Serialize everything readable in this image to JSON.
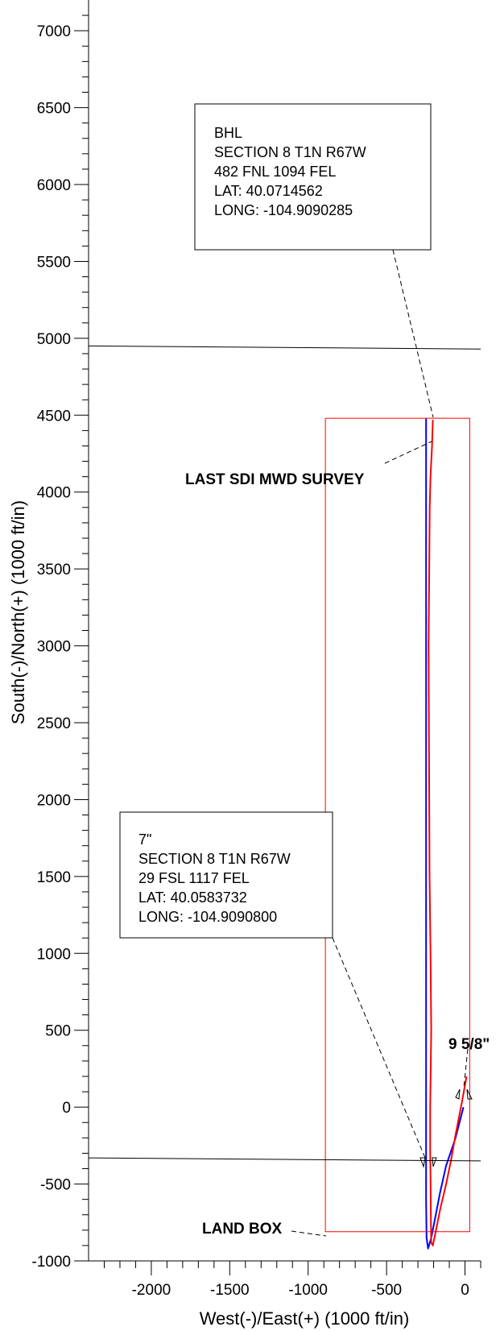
{
  "chart_data": {
    "type": "line",
    "title": "",
    "xlabel": "West(-)/East(+) (1000 ft/in)",
    "ylabel": "South(-)/North(+) (1000 ft/in)",
    "xlim": [
      -2400,
      100
    ],
    "ylim": [
      -1000,
      7200
    ],
    "x_ticks": [
      -2000,
      -1500,
      -1000,
      -500,
      0
    ],
    "x_tick_labels": [
      "-2000",
      "-1500",
      "-1000",
      "-500",
      "0"
    ],
    "y_ticks": [
      -1000,
      -500,
      0,
      500,
      1000,
      1500,
      2000,
      2500,
      3000,
      3500,
      4000,
      4500,
      5000,
      5500,
      6000,
      6500,
      7000
    ],
    "y_tick_labels": [
      "-1000",
      "-500",
      "0",
      "500",
      "1000",
      "1500",
      "2000",
      "2500",
      "3000",
      "3500",
      "4000",
      "4500",
      "5000",
      "5500",
      "6000",
      "6500",
      "7000"
    ],
    "grid": false,
    "series": [
      {
        "color": "#0000ff",
        "x": [
          -10,
          -60,
          -120,
          -160,
          -190,
          -215,
          -235,
          -245,
          -248,
          -248,
          -248
        ],
        "y": [
          0,
          -200,
          -380,
          -560,
          -720,
          -850,
          -920,
          -850,
          -600,
          0,
          4480
        ]
      },
      {
        "color": "#ff0000",
        "x": [
          10,
          -20,
          -60,
          -90,
          -120,
          -155,
          -185,
          -205,
          -215,
          -218,
          -220,
          -222,
          -222,
          -215,
          -220,
          -226,
          -228,
          -230,
          -232,
          -228,
          -225,
          -220,
          -210,
          -205
        ],
        "y": [
          200,
          30,
          -180,
          -350,
          -500,
          -650,
          -800,
          -900,
          -880,
          -700,
          -450,
          -300,
          0,
          500,
          1000,
          1500,
          2000,
          2500,
          3000,
          3500,
          3900,
          4100,
          4300,
          4470
        ]
      },
      {
        "color": "#ff0000",
        "x": [
          -890,
          30,
          30,
          -890,
          -890
        ],
        "y": [
          4480,
          4480,
          -810,
          -810,
          4480
        ]
      },
      {
        "color": "#000000",
        "x": [
          -2400,
          100
        ],
        "y": [
          4950,
          4930
        ]
      },
      {
        "color": "#000000",
        "x": [
          -2400,
          100
        ],
        "y": [
          -330,
          -350
        ]
      }
    ],
    "annotations": [
      {
        "box": true,
        "lines": [
          "BHL",
          "SECTION 8 T1N R67W",
          "482 FNL 1094 FEL",
          "LAT: 40.0714562",
          "LONG: -104.9090285"
        ]
      },
      {
        "box": true,
        "lines": [
          "7\"",
          "SECTION 8 T1N R67W",
          "29 FSL 1117 FEL",
          "LAT: 40.0583732",
          "LONG: -104.9090800"
        ]
      },
      {
        "box": false,
        "bold": true,
        "text": "LAST SDI MWD SURVEY"
      },
      {
        "box": false,
        "bold": true,
        "text": "9 5/8\""
      },
      {
        "box": false,
        "bold": true,
        "text": "LAND BOX"
      }
    ]
  }
}
